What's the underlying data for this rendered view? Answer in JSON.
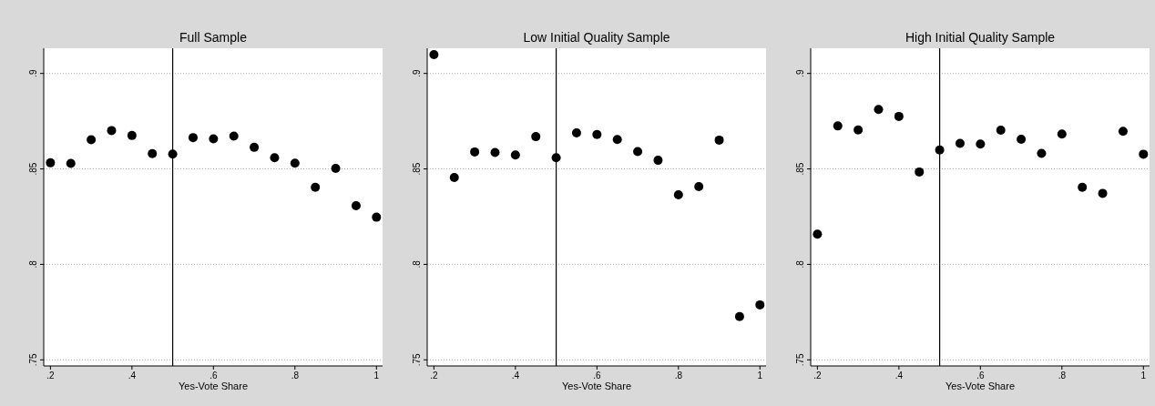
{
  "chart_data": [
    {
      "type": "scatter",
      "title": "Full Sample",
      "xlabel": "Yes-Vote Share",
      "x": [
        0.2,
        0.25,
        0.3,
        0.35,
        0.4,
        0.45,
        0.5,
        0.55,
        0.6,
        0.65,
        0.7,
        0.75,
        0.8,
        0.85,
        0.9,
        0.95,
        1
      ],
      "series": [
        {
          "color": "#000000",
          "values": [
            0.8532,
            0.8529,
            0.8653,
            0.8701,
            0.8675,
            0.858,
            0.8578,
            0.8664,
            0.8658,
            0.8672,
            0.8613,
            0.8559,
            0.853,
            0.8404,
            0.8503,
            0.8307,
            0.8247
          ]
        }
      ],
      "xlim": [
        0.1835,
        1.015
      ],
      "ylim": [
        0.7468,
        0.9132
      ],
      "xticks": [
        {
          "value": 0.2,
          "label": ".2"
        },
        {
          "value": 0.4,
          "label": ".4"
        },
        {
          "value": 0.6,
          "label": ".6"
        },
        {
          "value": 0.8,
          "label": ".8"
        },
        {
          "value": 1,
          "label": "1"
        }
      ],
      "yticks": [
        {
          "value": 0.75,
          "label": ".75"
        },
        {
          "value": 0.8,
          "label": ".8"
        },
        {
          "value": 0.85,
          "label": ".85"
        },
        {
          "value": 0.9,
          "label": ".9"
        }
      ],
      "ref_lines": [
        {
          "axis": "x",
          "value": 0.5,
          "color": "#000000"
        }
      ],
      "grid": "y",
      "marker": "circle"
    },
    {
      "type": "scatter",
      "title": "Low Initial Quality Sample",
      "xlabel": "Yes-Vote Share",
      "x": [
        0.2,
        0.25,
        0.3,
        0.35,
        0.4,
        0.45,
        0.5,
        0.55,
        0.6,
        0.65,
        0.7,
        0.75,
        0.8,
        0.85,
        0.9,
        0.95,
        1
      ],
      "series": [
        {
          "color": "#000000",
          "values": [
            0.9099,
            0.8455,
            0.8589,
            0.8586,
            0.8573,
            0.8669,
            0.8559,
            0.8689,
            0.868,
            0.8654,
            0.8591,
            0.8545,
            0.8364,
            0.8407,
            0.8651,
            0.7727,
            0.7788
          ]
        }
      ],
      "xlim": [
        0.1835,
        1.015
      ],
      "ylim": [
        0.7468,
        0.9132
      ],
      "xticks": [
        {
          "value": 0.2,
          "label": ".2"
        },
        {
          "value": 0.4,
          "label": ".4"
        },
        {
          "value": 0.6,
          "label": ".6"
        },
        {
          "value": 0.8,
          "label": ".8"
        },
        {
          "value": 1,
          "label": "1"
        }
      ],
      "yticks": [
        {
          "value": 0.75,
          "label": ".75"
        },
        {
          "value": 0.8,
          "label": ".8"
        },
        {
          "value": 0.85,
          "label": ".85"
        },
        {
          "value": 0.9,
          "label": ".9"
        }
      ],
      "ref_lines": [
        {
          "axis": "x",
          "value": 0.5,
          "color": "#000000"
        }
      ],
      "grid": "y",
      "marker": "circle"
    },
    {
      "type": "scatter",
      "title": "High Initial Quality Sample",
      "xlabel": "Yes-Vote Share",
      "x": [
        0.2,
        0.25,
        0.3,
        0.35,
        0.4,
        0.45,
        0.5,
        0.55,
        0.6,
        0.65,
        0.7,
        0.75,
        0.8,
        0.85,
        0.9,
        0.95,
        1
      ],
      "series": [
        {
          "color": "#000000",
          "values": [
            0.8158,
            0.8725,
            0.8704,
            0.8811,
            0.8775,
            0.8484,
            0.8599,
            0.8634,
            0.863,
            0.8703,
            0.8655,
            0.8581,
            0.8683,
            0.8404,
            0.8372,
            0.8697,
            0.8577
          ]
        }
      ],
      "xlim": [
        0.1835,
        1.015
      ],
      "ylim": [
        0.7468,
        0.9132
      ],
      "xticks": [
        {
          "value": 0.2,
          "label": ".2"
        },
        {
          "value": 0.4,
          "label": ".4"
        },
        {
          "value": 0.6,
          "label": ".6"
        },
        {
          "value": 0.8,
          "label": ".8"
        },
        {
          "value": 1,
          "label": "1"
        }
      ],
      "yticks": [
        {
          "value": 0.75,
          "label": ".75"
        },
        {
          "value": 0.8,
          "label": ".8"
        },
        {
          "value": 0.85,
          "label": ".85"
        },
        {
          "value": 0.9,
          "label": ".9"
        }
      ],
      "ref_lines": [
        {
          "axis": "x",
          "value": 0.5,
          "color": "#000000"
        }
      ],
      "grid": "y",
      "marker": "circle"
    }
  ]
}
